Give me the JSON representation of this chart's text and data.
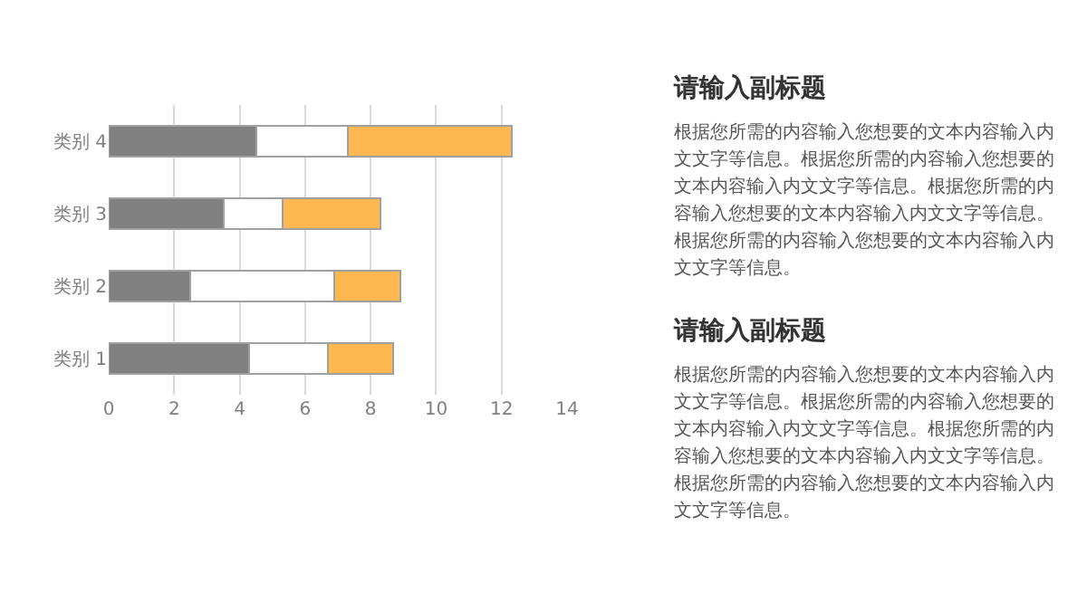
{
  "chart_data": {
    "type": "bar",
    "orientation": "horizontal",
    "stacked": true,
    "categories": [
      "类别 4",
      "类别 3",
      "类别 2",
      "类别 1"
    ],
    "series": [
      {
        "color": "#808080",
        "values": [
          4.5,
          3.5,
          2.5,
          4.3
        ]
      },
      {
        "color": "#ffffff",
        "values": [
          2.8,
          1.8,
          4.4,
          2.4
        ]
      },
      {
        "color": "#ffb74f",
        "values": [
          5.0,
          3.0,
          2.0,
          2.0
        ]
      }
    ],
    "xlim": [
      0,
      14
    ],
    "xticks": [
      0,
      2,
      4,
      6,
      8,
      10,
      12,
      14
    ],
    "grid": "x",
    "annotations": [
      "请输入副标题",
      "根据您所需的内容输入您想要的文本内容输入内文文字等信息。根据您所需的内容输入您想要的文本内容输入内文文字等信息。根据您所需的内容输入您想要的文本内容输入内文文字等信息。根据您所需的内容输入您想要的文本内容输入内文文字等信息。",
      "请输入副标题",
      "根据您所需的内容输入您想要的文本内容输入内文文字等信息。根据您所需的内容输入您想要的文本内容输入内文文字等信息。根据您所需的内容输入您想要的文本内容输入内文文字等信息。根据您所需的内容输入您想要的文本内容输入内文文字等信息。"
    ]
  }
}
